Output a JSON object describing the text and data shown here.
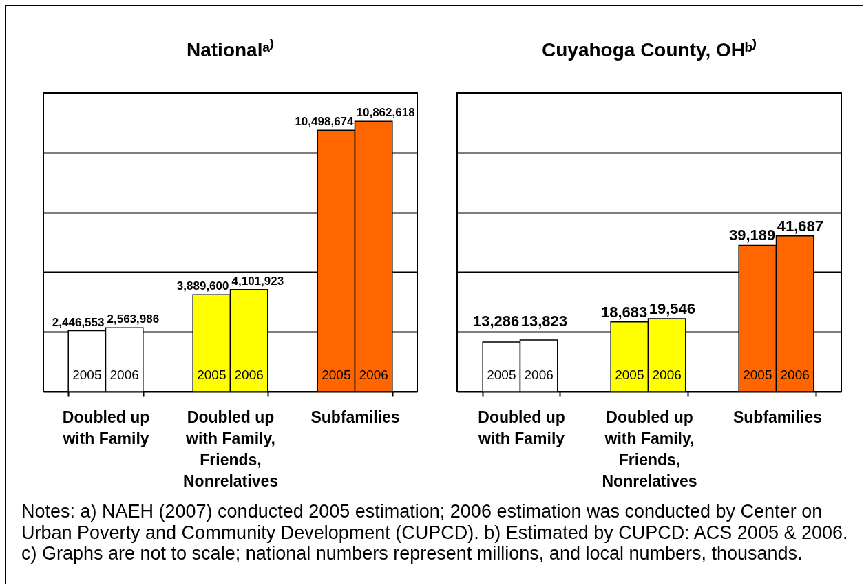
{
  "chart_data": [
    {
      "type": "bar",
      "title": "Nationalᵃ⁾",
      "categories": [
        "Doubled up with Family",
        "Doubled up with Family, Friends, Nonrelatives",
        "Subfamilies"
      ],
      "series": [
        {
          "name": "2005",
          "colors": [
            "#ffffff",
            "#ffff00",
            "#ff6600"
          ],
          "values": [
            2446553,
            3889600,
            10498674
          ],
          "value_labels": [
            "2,446,553",
            "3,889,600",
            "10,498,674"
          ]
        },
        {
          "name": "2006",
          "colors": [
            "#ffffff",
            "#ffff00",
            "#ff6600"
          ],
          "values": [
            2563986,
            4101923,
            10862618
          ],
          "value_labels": [
            "2,563,986",
            "4,101,923",
            "10,862,618"
          ]
        }
      ],
      "ylim": [
        0,
        12000000
      ],
      "yticks": [
        {
          "value": 0,
          "label": null
        },
        {
          "value": 2400000,
          "label": null
        },
        {
          "value": 4800000,
          "label": null
        },
        {
          "value": 7200000,
          "label": null
        },
        {
          "value": 9600000,
          "label": null
        },
        {
          "value": 12000000,
          "label": null
        }
      ],
      "grid": "y",
      "tick_labels": "x"
    },
    {
      "type": "bar",
      "title": "Cuyahoga County, OHᵇ⁾",
      "categories": [
        "Doubled up with Family",
        "Doubled up with Family, Friends, Nonrelatives",
        "Subfamilies"
      ],
      "series": [
        {
          "name": "2005",
          "colors": [
            "#ffffff",
            "#ffff00",
            "#ff6600"
          ],
          "values": [
            13286,
            18683,
            39189
          ],
          "value_labels": [
            "13,286",
            "18,683",
            "39,189"
          ]
        },
        {
          "name": "2006",
          "colors": [
            "#ffffff",
            "#ffff00",
            "#ff6600"
          ],
          "values": [
            13823,
            19546,
            41687
          ],
          "value_labels": [
            "13,823",
            "19,546",
            "41,687"
          ]
        }
      ],
      "ylim": [
        0,
        80000
      ],
      "yticks": [
        {
          "value": 0,
          "label": null
        },
        {
          "value": 16000,
          "label": null
        },
        {
          "value": 32000,
          "label": null
        },
        {
          "value": 48000,
          "label": null
        },
        {
          "value": 64000,
          "label": null
        },
        {
          "value": 80000,
          "label": null
        }
      ],
      "grid": "y",
      "tick_labels": "x",
      "annotations": [
        "Notes:  a) NAEH (2007) conducted 2005 estimation; 2006 estimation was conducted by Center on\nUrban Poverty and Community Development (CUPCD).  b) Estimated by CUPCD: ACS 2005 & 2006.\nc) Graphs are not to scale; national numbers represent millions, and local numbers, thousands."
      ]
    }
  ]
}
